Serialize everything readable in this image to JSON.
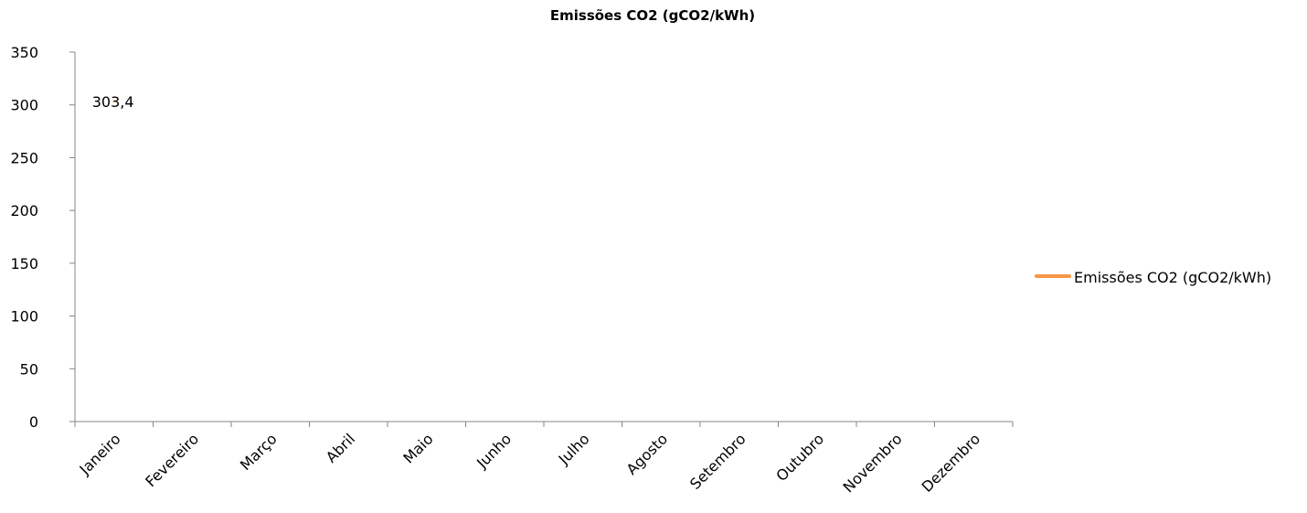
{
  "chart_data": {
    "type": "line",
    "title": "Emissões CO2 (gCO2/kWh)",
    "categories": [
      "Janeiro",
      "Fevereiro",
      "Março",
      "Abril",
      "Maio",
      "Junho",
      "Julho",
      "Agosto",
      "Setembro",
      "Outubro",
      "Novembro",
      "Dezembro"
    ],
    "series": [
      {
        "name": "Emissões CO2 (gCO2/kWh)",
        "values": [
          303.4,
          null,
          null,
          null,
          null,
          null,
          null,
          null,
          null,
          null,
          null,
          null
        ],
        "data_labels": [
          "303,4",
          null,
          null,
          null,
          null,
          null,
          null,
          null,
          null,
          null,
          null,
          null
        ],
        "color": "#F79646"
      }
    ],
    "ylim": [
      0,
      350
    ],
    "yticks": [
      0,
      50,
      100,
      150,
      200,
      250,
      300,
      350
    ],
    "xlabel": "",
    "ylabel": "",
    "grid": false,
    "legend_position": "right",
    "axis_color": "#868686"
  }
}
